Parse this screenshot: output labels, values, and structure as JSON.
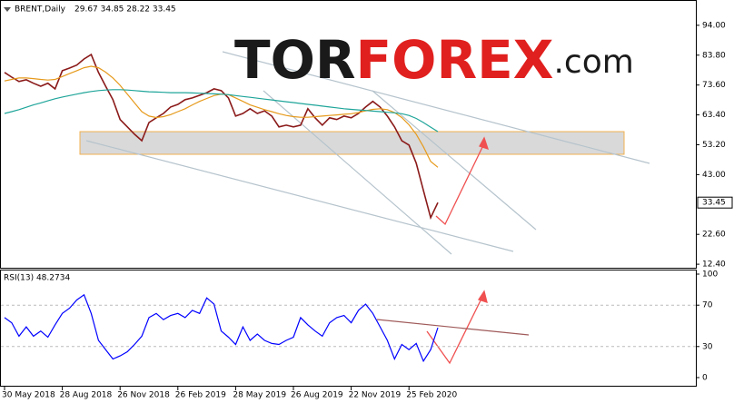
{
  "logo": {
    "part1": "TOR",
    "part2": "FOREX",
    "part3": ".com"
  },
  "chart_data": [
    {
      "type": "line",
      "title": "BRENT,Daily",
      "subtitle": "29.67 34.85 28.22 33.45",
      "categories": [
        "30 May 2018",
        null,
        null,
        null,
        null,
        null,
        null,
        null,
        "28 Aug 2018",
        null,
        null,
        null,
        null,
        null,
        null,
        null,
        "26 Nov 2018",
        null,
        null,
        null,
        null,
        null,
        null,
        null,
        "26 Feb 2019",
        null,
        null,
        null,
        null,
        null,
        null,
        null,
        "28 May 2019",
        null,
        null,
        null,
        null,
        null,
        null,
        null,
        "26 Aug 2019",
        null,
        null,
        null,
        null,
        null,
        null,
        null,
        "22 Nov 2019",
        null,
        null,
        null,
        null,
        null,
        null,
        null,
        "25 Feb 2020",
        null,
        null,
        null,
        null
      ],
      "series": [
        {
          "color": "#8b1a1a",
          "values": [
            77.9,
            76.3,
            74.8,
            75.4,
            74.2,
            73.2,
            74.2,
            72.3,
            78.5,
            79.4,
            80.4,
            82.5,
            84,
            77.9,
            73.2,
            68.6,
            61.8,
            59.3,
            56.8,
            54.6,
            60.8,
            62.4,
            63.9,
            66.1,
            67,
            68.6,
            69.2,
            70.1,
            71,
            72.3,
            71.7,
            69.2,
            63,
            63.9,
            65.5,
            63.9,
            64.8,
            63,
            59.3,
            59.9,
            59.3,
            59.9,
            65.5,
            62.4,
            59.9,
            62.4,
            61.8,
            63,
            62.4,
            63.9,
            66.1,
            68,
            66.1,
            63,
            59.3,
            54.6,
            53.1,
            46.9,
            37.6,
            28.3,
            33.45
          ]
        },
        {
          "color": "#e69a1c",
          "values": [
            75,
            75.5,
            76,
            76,
            75.8,
            75.5,
            75.3,
            75.5,
            76.5,
            77.5,
            78.5,
            79.5,
            80,
            79.5,
            78,
            76,
            73.5,
            70.5,
            67.5,
            64.5,
            63,
            62.5,
            62.8,
            63.5,
            64.5,
            65.5,
            66.8,
            68,
            69,
            70,
            70.5,
            70.3,
            69.2,
            68,
            66.8,
            66,
            65.2,
            64.5,
            63.8,
            63.2,
            62.8,
            62.6,
            62.6,
            62.8,
            63,
            63.2,
            63.4,
            63.6,
            63.8,
            64.2,
            64.8,
            65.3,
            65.5,
            65.2,
            64.2,
            62.5,
            60,
            56.8,
            52.5,
            47.5,
            45.5
          ]
        },
        {
          "color": "#1fa59a",
          "values": [
            63.9,
            64.5,
            65.2,
            66,
            66.8,
            67.5,
            68.2,
            68.9,
            69.5,
            70,
            70.5,
            71,
            71.4,
            71.7,
            71.9,
            72,
            72,
            71.9,
            71.7,
            71.5,
            71.3,
            71.2,
            71.1,
            71,
            71,
            71,
            70.9,
            70.8,
            70.7,
            70.6,
            70.5,
            70.3,
            70,
            69.7,
            69.4,
            69.1,
            68.8,
            68.5,
            68.2,
            67.9,
            67.6,
            67.3,
            67,
            66.7,
            66.4,
            66.1,
            65.8,
            65.5,
            65.3,
            65.1,
            64.9,
            64.7,
            64.5,
            64.3,
            64.1,
            63.8,
            63.2,
            62.2,
            60.8,
            59.2,
            57.7
          ]
        }
      ],
      "price_marker": {
        "value": 33.45,
        "label": "33.45"
      },
      "ylim": [
        11.5,
        101.4
      ],
      "yticks": [
        {
          "value": 94,
          "label": "94.00"
        },
        {
          "value": 83.8,
          "label": "83.80"
        },
        {
          "value": 73.6,
          "label": "73.60"
        },
        {
          "value": 63.4,
          "label": "63.40"
        },
        {
          "value": 53.2,
          "label": "53.20"
        },
        {
          "value": 43,
          "label": "43.00"
        },
        {
          "value": 22.6,
          "label": "22.60"
        },
        {
          "value": 12.4,
          "label": "12.40"
        }
      ]
    },
    {
      "type": "line",
      "title": "RSI(13) 48.2734",
      "series": [
        {
          "color": "#0000ff",
          "values": [
            58,
            53,
            40,
            49,
            40,
            45,
            39,
            51,
            62,
            67,
            75,
            80,
            62,
            36,
            27,
            18,
            21,
            25,
            32,
            40,
            58,
            62,
            56,
            60,
            62,
            58,
            65,
            62,
            77,
            71,
            45,
            39,
            32,
            49,
            36,
            42,
            36,
            33,
            32,
            36,
            39,
            58,
            51,
            45,
            40,
            53,
            58,
            60,
            53,
            65,
            71,
            62,
            49,
            36,
            18,
            32,
            27,
            33,
            16,
            27,
            48.2734
          ]
        }
      ],
      "ylim": [
        0,
        100
      ],
      "yticks": [
        100,
        70,
        30,
        0
      ],
      "grid": [
        70,
        30
      ]
    }
  ]
}
